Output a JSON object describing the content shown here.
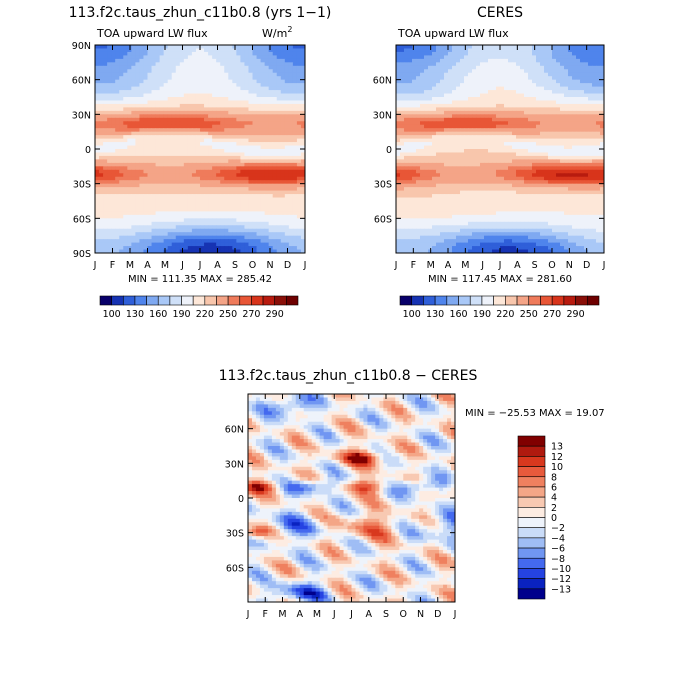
{
  "colors": {
    "full_palette": [
      "#08006a",
      "#1633b3",
      "#2f5fd9",
      "#4f84ec",
      "#7fa9f1",
      "#a9c8f7",
      "#cfe0f8",
      "#eef2fa",
      "#fde7d8",
      "#f8c6ac",
      "#f4a487",
      "#ef7b5b",
      "#e85636",
      "#d8341b",
      "#b81b0f",
      "#8a0f08",
      "#6e0000"
    ],
    "diff_palette": [
      "#00008c",
      "#0a22c0",
      "#2543e2",
      "#4469ef",
      "#7096f2",
      "#9fbdf5",
      "#cadcf8",
      "#eef3fb",
      "#fdece2",
      "#f8c9b2",
      "#f4a687",
      "#ef805f",
      "#e85a3c",
      "#d8381e",
      "#b01a0f",
      "#800000"
    ]
  },
  "chart_data": [
    {
      "type": "heatmap",
      "title": "113.f2c.taus_zhun_c11b0.8 (yrs 1−1)",
      "subtitle_left": "TOA upward LW flux",
      "units": "W/m",
      "units_superscript": "2",
      "x_ticks": [
        "J",
        "F",
        "M",
        "A",
        "M",
        "J",
        "J",
        "A",
        "S",
        "O",
        "N",
        "D",
        "J"
      ],
      "y_ticks": [
        "90N",
        "60N",
        "30N",
        "0",
        "30S",
        "60S",
        "90S"
      ],
      "y_tick_values": [
        90,
        60,
        30,
        0,
        -30,
        -60,
        -90
      ],
      "ylim": [
        -90,
        90
      ],
      "stats": "MIN = 111.35 MAX = 285.42",
      "colorbar_labels": [
        "100",
        "130",
        "160",
        "190",
        "220",
        "250",
        "270",
        "290"
      ],
      "z_min": 111.35,
      "z_max": 285.42
    },
    {
      "type": "heatmap",
      "title": "CERES",
      "subtitle_left": "TOA upward LW flux",
      "x_ticks": [
        "J",
        "F",
        "M",
        "A",
        "M",
        "J",
        "J",
        "A",
        "S",
        "O",
        "N",
        "D",
        "J"
      ],
      "y_ticks": [
        "60N",
        "30N",
        "0",
        "30S",
        "60S"
      ],
      "y_tick_values": [
        60,
        30,
        0,
        -30,
        -60
      ],
      "ylim": [
        -90,
        90
      ],
      "stats": "MIN = 117.45 MAX = 281.60",
      "colorbar_labels": [
        "100",
        "130",
        "160",
        "190",
        "220",
        "250",
        "270",
        "290"
      ],
      "z_min": 117.45,
      "z_max": 281.6
    },
    {
      "type": "heatmap",
      "title": "113.f2c.taus_zhun_c11b0.8 − CERES",
      "x_ticks": [
        "J",
        "F",
        "M",
        "A",
        "M",
        "J",
        "J",
        "A",
        "S",
        "O",
        "N",
        "D",
        "J"
      ],
      "y_ticks": [
        "60N",
        "30N",
        "0",
        "30S",
        "60S"
      ],
      "y_tick_values": [
        60,
        30,
        0,
        -30,
        -60
      ],
      "ylim": [
        -90,
        90
      ],
      "stats": "MIN = −25.53 MAX =  19.07",
      "colorbar_labels": [
        "13",
        "12",
        "10",
        "8",
        "6",
        "4",
        "2",
        "0",
        "−2",
        "−4",
        "−6",
        "−8",
        "−10",
        "−12",
        "−13"
      ],
      "z_min": -25.53,
      "z_max": 19.07
    }
  ]
}
